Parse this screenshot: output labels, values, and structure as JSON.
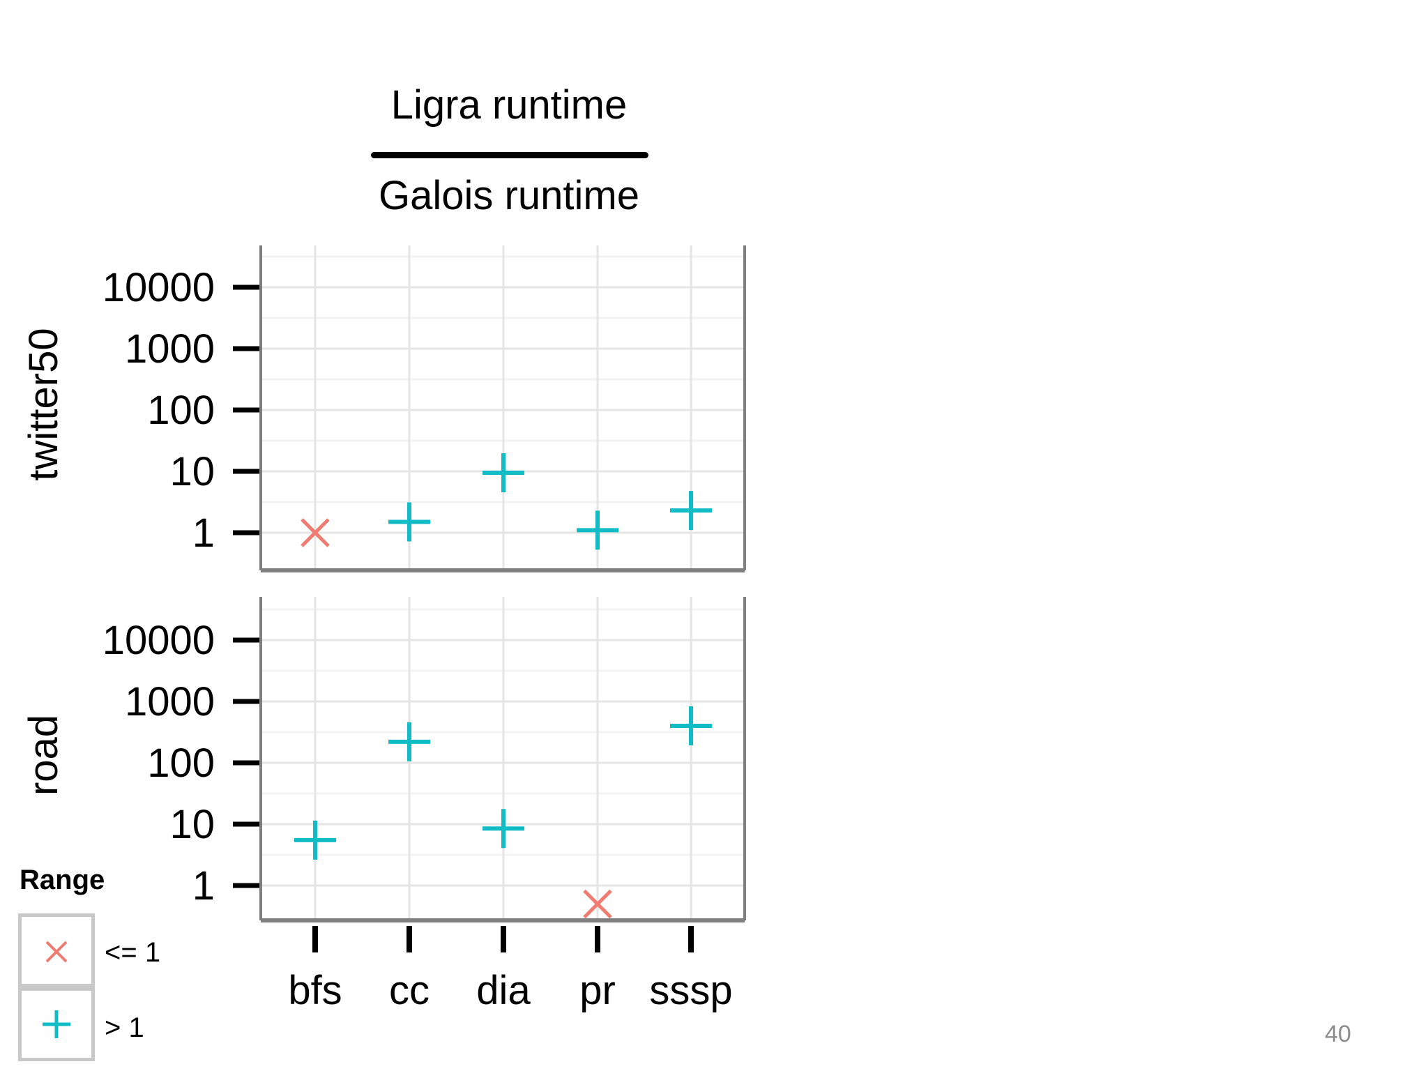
{
  "slide": {
    "page_number": "40"
  },
  "chart_data": {
    "type": "scatter",
    "title_numerator": "Ligra runtime",
    "title_denominator": "Galois runtime",
    "categories": [
      "bfs",
      "cc",
      "dia",
      "pr",
      "sssp"
    ],
    "y_scale": "log10",
    "y_ticks": [
      1,
      10,
      100,
      1000,
      10000
    ],
    "y_tick_labels": [
      "1",
      "10",
      "100",
      "1000",
      "10000"
    ],
    "grid": true,
    "panels": [
      {
        "name": "twitter50",
        "values": [
          1.0,
          1.5,
          9.5,
          1.1,
          2.3
        ]
      },
      {
        "name": "road",
        "values": [
          5.5,
          220,
          8.5,
          0.5,
          400
        ]
      }
    ],
    "legend": {
      "title": "Range",
      "position": "bottom-left",
      "entries": [
        {
          "label": "<= 1",
          "shape": "x-mark",
          "color": "#f07b70"
        },
        {
          "label": "> 1",
          "shape": "plus-mark",
          "color": "#12bcc4"
        }
      ]
    },
    "colors": {
      "le1": "#f07b70",
      "gt1": "#12bcc4"
    }
  }
}
